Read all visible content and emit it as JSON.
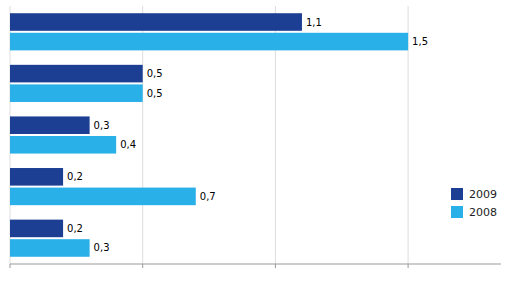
{
  "chart_data": {
    "type": "bar",
    "orientation": "horizontal",
    "categories": [
      null,
      null,
      null,
      null,
      null
    ],
    "series": [
      {
        "name": "2009",
        "color": "#1c3f94",
        "values": [
          1.1,
          0.5,
          0.3,
          0.2,
          0.2
        ],
        "value_labels": [
          "1,1",
          "0,5",
          "0,3",
          "0,2",
          "0,2"
        ]
      },
      {
        "name": "2008",
        "color": "#2ab0e8",
        "values": [
          1.5,
          0.5,
          0.4,
          0.7,
          0.3
        ],
        "value_labels": [
          "1,5",
          "0,5",
          "0,4",
          "0,7",
          "0,3"
        ]
      }
    ],
    "xlim": [
      0,
      1.85
    ],
    "xticks": [
      0.0,
      0.5,
      1.0,
      1.5
    ],
    "tick_labels": false,
    "grid": true,
    "legend": "lower right",
    "data_labels": true
  }
}
